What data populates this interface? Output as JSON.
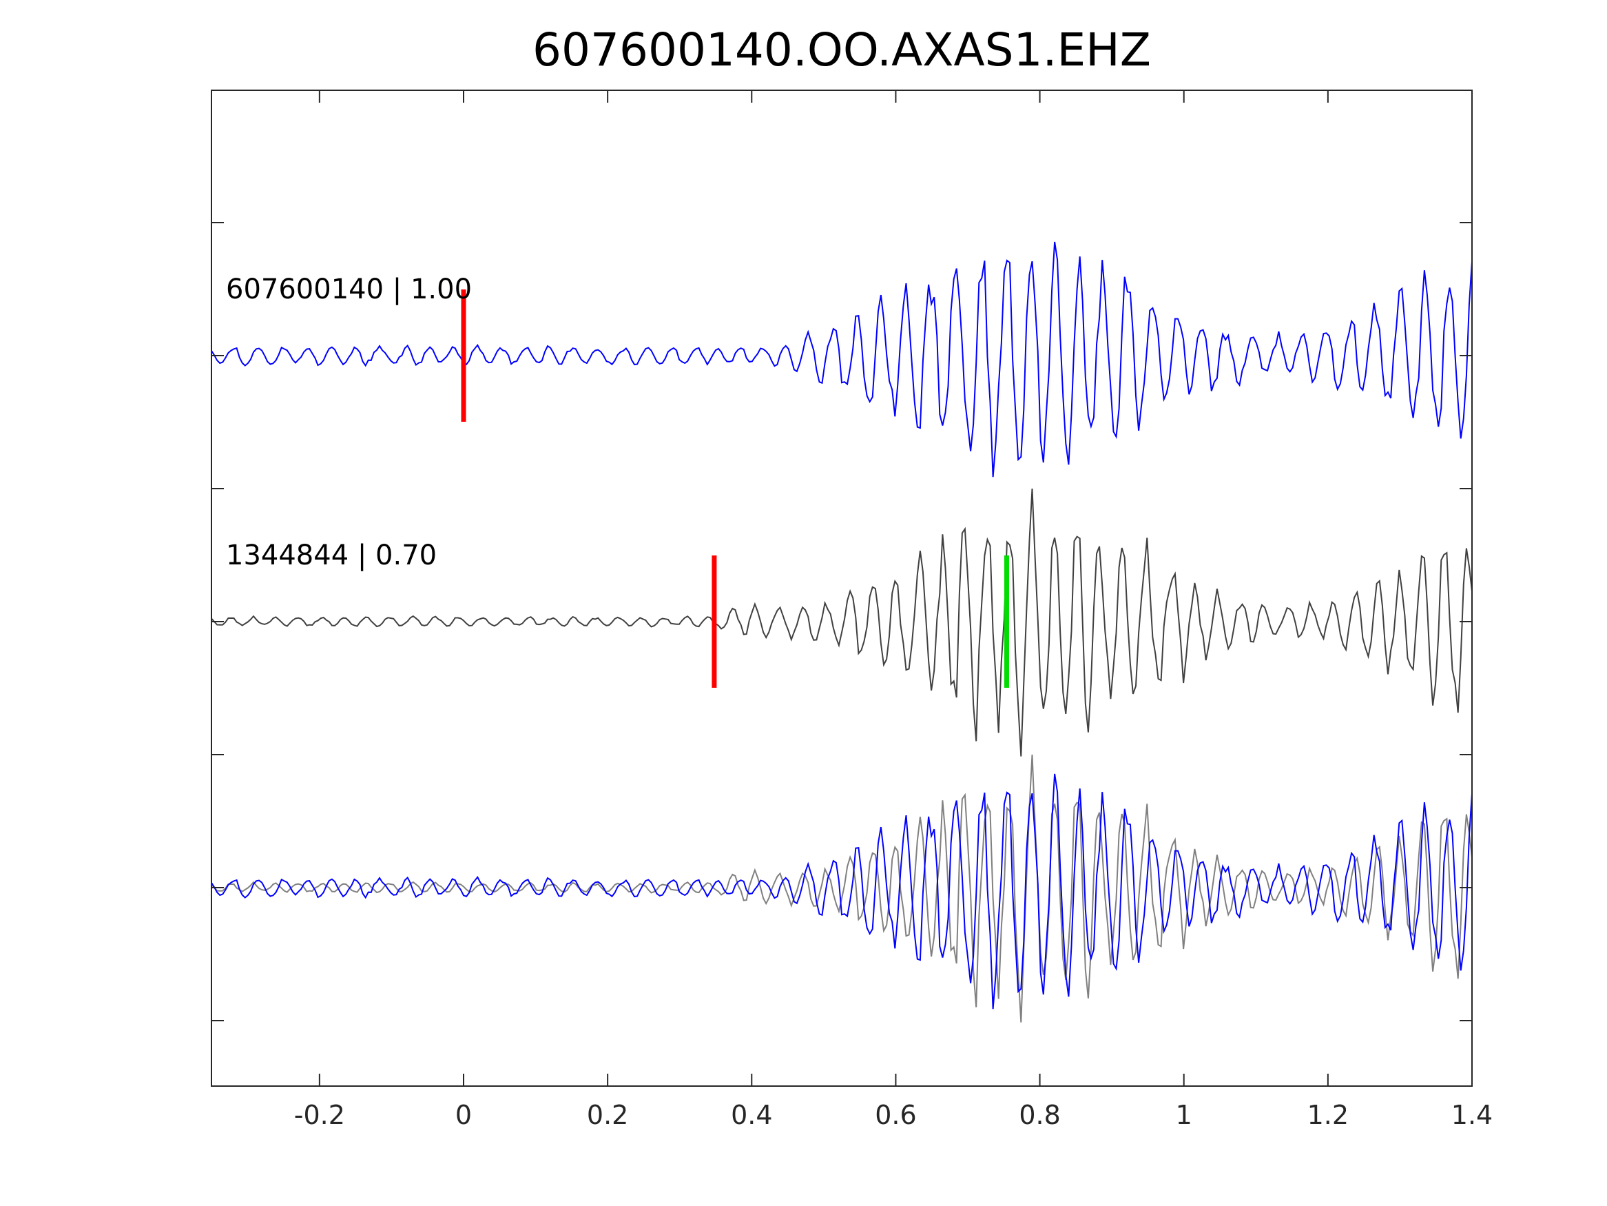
{
  "chart_data": {
    "type": "line",
    "title": "607600140.OO.AXAS1.EHZ",
    "xlabel": "",
    "ylabel": "",
    "xlim": [
      -0.35,
      1.4
    ],
    "x_ticks": [
      -0.2,
      0,
      0.2,
      0.4,
      0.6,
      0.8,
      1,
      1.2,
      1.4
    ],
    "x_tick_labels": [
      "-0.2",
      "0",
      "0.2",
      "0.4",
      "0.6",
      "0.8",
      "1",
      "1.2",
      "1.4"
    ],
    "y_ticks_labeled": false,
    "grid": false,
    "panels": [
      {
        "label": "607600140 | 1.00",
        "trace_color": "#0000ff",
        "picks": [
          {
            "x": 0.0,
            "color": "#ff0000"
          }
        ]
      },
      {
        "label": "1344844 | 0.70",
        "trace_color": "#404040",
        "picks": [
          {
            "x": 0.348,
            "color": "#ff0000"
          },
          {
            "x": 0.754,
            "color": "#00dd00"
          }
        ]
      },
      {
        "label": "",
        "overlay": [
          {
            "trace_color": "#0000ff"
          },
          {
            "trace_color": "#808080"
          }
        ]
      }
    ]
  }
}
